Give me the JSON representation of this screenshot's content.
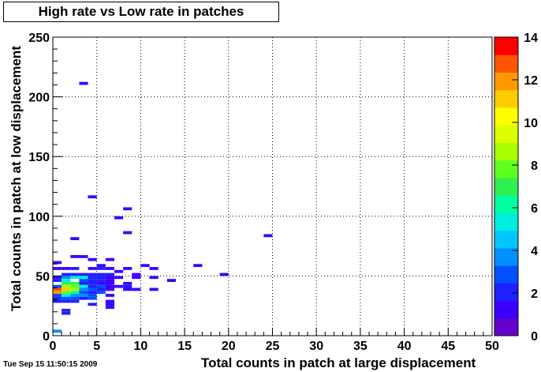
{
  "chart_data": {
    "type": "heatmap",
    "title": "High rate vs Low rate in patches",
    "xlabel": "Total counts in patch at large displacement",
    "ylabel": "Total counts in patch at low displacement",
    "xlim": [
      0,
      50
    ],
    "ylim": [
      0,
      250
    ],
    "x_ticks": [
      "0",
      "5",
      "10",
      "15",
      "20",
      "25",
      "30",
      "35",
      "40",
      "45",
      "50"
    ],
    "y_ticks": [
      "0",
      "50",
      "100",
      "150",
      "200",
      "250"
    ],
    "z_range": [
      0,
      14
    ],
    "colorbar_ticks": [
      "0",
      "2",
      "4",
      "6",
      "8",
      "10",
      "12",
      "14"
    ],
    "grid": true,
    "bin_width": 1,
    "bin_height": 2.5,
    "cells": [
      {
        "x": 0,
        "y": 60,
        "z": 1
      },
      {
        "x": 0,
        "y": 55,
        "z": 1
      },
      {
        "x": 0,
        "y": 47.5,
        "z": 2
      },
      {
        "x": 0,
        "y": 45,
        "z": 2
      },
      {
        "x": 0,
        "y": 40,
        "z": 3
      },
      {
        "x": 0,
        "y": 37.5,
        "z": 13
      },
      {
        "x": 0,
        "y": 35,
        "z": 12
      },
      {
        "x": 0,
        "y": 32.5,
        "z": 3
      },
      {
        "x": 0,
        "y": 30,
        "z": 2
      },
      {
        "x": 0,
        "y": 27.5,
        "z": 2
      },
      {
        "x": 0,
        "y": 2.5,
        "z": 4
      },
      {
        "x": 1,
        "y": 55,
        "z": 1
      },
      {
        "x": 1,
        "y": 50,
        "z": 2
      },
      {
        "x": 1,
        "y": 47.5,
        "z": 4
      },
      {
        "x": 1,
        "y": 45,
        "z": 5
      },
      {
        "x": 1,
        "y": 42.5,
        "z": 7
      },
      {
        "x": 1,
        "y": 40,
        "z": 9
      },
      {
        "x": 1,
        "y": 37.5,
        "z": 11
      },
      {
        "x": 1,
        "y": 35,
        "z": 8
      },
      {
        "x": 1,
        "y": 32.5,
        "z": 5
      },
      {
        "x": 1,
        "y": 30,
        "z": 3
      },
      {
        "x": 1,
        "y": 27.5,
        "z": 2
      },
      {
        "x": 1,
        "y": 20,
        "z": 2
      },
      {
        "x": 1,
        "y": 17.5,
        "z": 2
      },
      {
        "x": 2,
        "y": 65,
        "z": 1
      },
      {
        "x": 2,
        "y": 55,
        "z": 2
      },
      {
        "x": 2,
        "y": 50,
        "z": 2
      },
      {
        "x": 2,
        "y": 47.5,
        "z": 5
      },
      {
        "x": 2,
        "y": 42.5,
        "z": 7
      },
      {
        "x": 2,
        "y": 40,
        "z": 8
      },
      {
        "x": 2,
        "y": 37.5,
        "z": 9
      },
      {
        "x": 2,
        "y": 35,
        "z": 6
      },
      {
        "x": 2,
        "y": 32.5,
        "z": 4
      },
      {
        "x": 2,
        "y": 30,
        "z": 3
      },
      {
        "x": 2,
        "y": 27.5,
        "z": 2
      },
      {
        "x": 2,
        "y": 80,
        "z": 1
      },
      {
        "x": 3,
        "y": 210,
        "z": 1
      },
      {
        "x": 3,
        "y": 65,
        "z": 1
      },
      {
        "x": 3,
        "y": 50,
        "z": 2
      },
      {
        "x": 3,
        "y": 47.5,
        "z": 5
      },
      {
        "x": 3,
        "y": 45,
        "z": 3
      },
      {
        "x": 3,
        "y": 42.5,
        "z": 2
      },
      {
        "x": 3,
        "y": 40,
        "z": 5
      },
      {
        "x": 3,
        "y": 37.5,
        "z": 4
      },
      {
        "x": 3,
        "y": 35,
        "z": 3
      },
      {
        "x": 3,
        "y": 32.5,
        "z": 4
      },
      {
        "x": 3,
        "y": 30,
        "z": 2
      },
      {
        "x": 4,
        "y": 115,
        "z": 1
      },
      {
        "x": 4,
        "y": 62.5,
        "z": 1
      },
      {
        "x": 4,
        "y": 55,
        "z": 1
      },
      {
        "x": 4,
        "y": 50,
        "z": 2
      },
      {
        "x": 4,
        "y": 47.5,
        "z": 2
      },
      {
        "x": 4,
        "y": 45,
        "z": 2
      },
      {
        "x": 4,
        "y": 42.5,
        "z": 2
      },
      {
        "x": 4,
        "y": 40,
        "z": 2
      },
      {
        "x": 4,
        "y": 37.5,
        "z": 3
      },
      {
        "x": 4,
        "y": 35,
        "z": 2
      },
      {
        "x": 4,
        "y": 32.5,
        "z": 3
      },
      {
        "x": 4,
        "y": 30,
        "z": 3
      },
      {
        "x": 4,
        "y": 25,
        "z": 2
      },
      {
        "x": 5,
        "y": 57.5,
        "z": 1
      },
      {
        "x": 5,
        "y": 55,
        "z": 2
      },
      {
        "x": 5,
        "y": 50,
        "z": 2
      },
      {
        "x": 5,
        "y": 47.5,
        "z": 2
      },
      {
        "x": 5,
        "y": 45,
        "z": 2
      },
      {
        "x": 5,
        "y": 42.5,
        "z": 1
      },
      {
        "x": 5,
        "y": 40,
        "z": 3
      },
      {
        "x": 5,
        "y": 37.5,
        "z": 2
      },
      {
        "x": 5,
        "y": 35,
        "z": 3
      },
      {
        "x": 6,
        "y": 62.5,
        "z": 1
      },
      {
        "x": 6,
        "y": 55,
        "z": 1
      },
      {
        "x": 6,
        "y": 50,
        "z": 2
      },
      {
        "x": 6,
        "y": 47.5,
        "z": 1
      },
      {
        "x": 6,
        "y": 45,
        "z": 1
      },
      {
        "x": 6,
        "y": 42.5,
        "z": 1
      },
      {
        "x": 6,
        "y": 40,
        "z": 1
      },
      {
        "x": 6,
        "y": 37.5,
        "z": 1
      },
      {
        "x": 6,
        "y": 32.5,
        "z": 1
      },
      {
        "x": 6,
        "y": 27.5,
        "z": 1
      },
      {
        "x": 6,
        "y": 25,
        "z": 1
      },
      {
        "x": 6,
        "y": 22.5,
        "z": 1
      },
      {
        "x": 7,
        "y": 97.5,
        "z": 1
      },
      {
        "x": 7,
        "y": 52.5,
        "z": 1
      },
      {
        "x": 7,
        "y": 47.5,
        "z": 1
      },
      {
        "x": 7,
        "y": 40,
        "z": 1
      },
      {
        "x": 8,
        "y": 105,
        "z": 1
      },
      {
        "x": 8,
        "y": 85,
        "z": 1
      },
      {
        "x": 8,
        "y": 55,
        "z": 1
      },
      {
        "x": 8,
        "y": 42.5,
        "z": 1
      },
      {
        "x": 8,
        "y": 40,
        "z": 2
      },
      {
        "x": 8,
        "y": 37.5,
        "z": 1
      },
      {
        "x": 9,
        "y": 50,
        "z": 1
      },
      {
        "x": 9,
        "y": 47.5,
        "z": 1
      },
      {
        "x": 9,
        "y": 37.5,
        "z": 1
      },
      {
        "x": 10,
        "y": 57.5,
        "z": 1
      },
      {
        "x": 11,
        "y": 55,
        "z": 1
      },
      {
        "x": 11,
        "y": 47.5,
        "z": 1
      },
      {
        "x": 11,
        "y": 37.5,
        "z": 1
      },
      {
        "x": 13,
        "y": 45,
        "z": 1
      },
      {
        "x": 16,
        "y": 57.5,
        "z": 1
      },
      {
        "x": 19,
        "y": 50,
        "z": 1
      },
      {
        "x": 24,
        "y": 82.5,
        "z": 1
      }
    ]
  },
  "timestamp": "Tue Sep 15 11:50:15 2009"
}
